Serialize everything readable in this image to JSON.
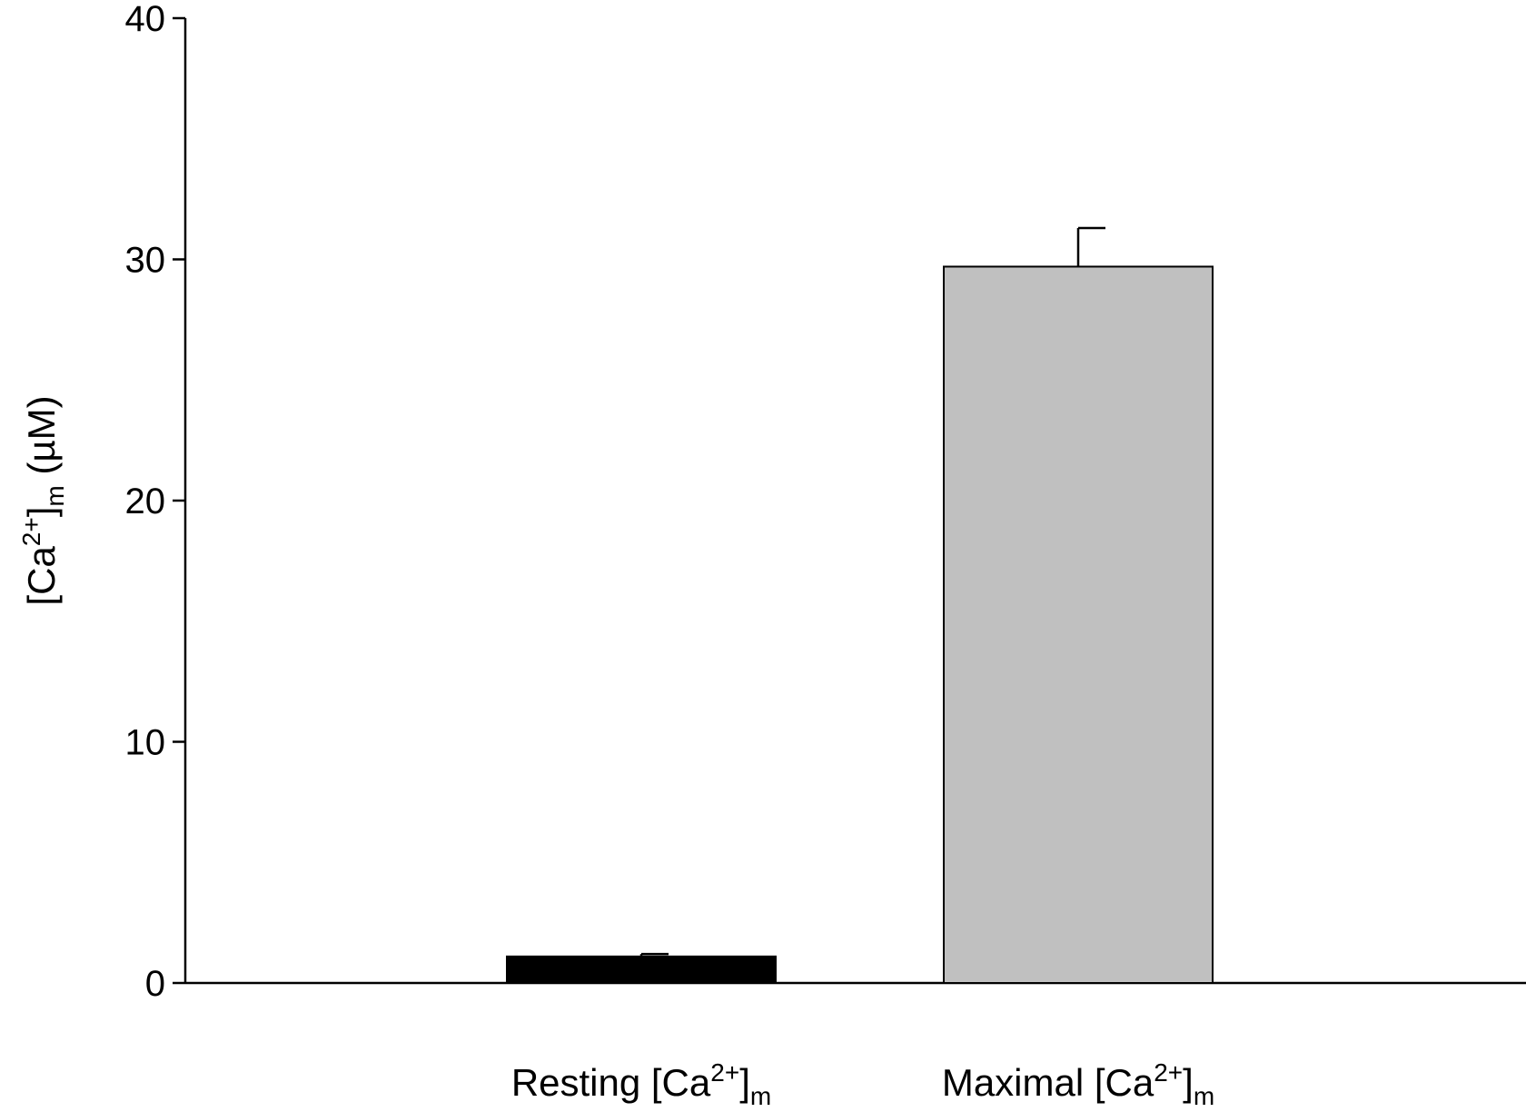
{
  "chart_data": {
    "type": "bar",
    "title": "",
    "xlabel": "",
    "ylabel": {
      "prefix": "[Ca",
      "sup": "2+",
      "close": "]",
      "sub": "m",
      "suffix": " (µM)"
    },
    "ylim": [
      0,
      40
    ],
    "yticks": [
      "0",
      "10",
      "20",
      "30",
      "40"
    ],
    "grid": false,
    "categories": [
      {
        "prefix": "Resting [Ca",
        "sup": "2+",
        "close": "]",
        "sub": "m"
      },
      {
        "prefix": "Maximal [Ca",
        "sup": "2+",
        "close": "]",
        "sub": "m"
      }
    ],
    "values": [
      1.1,
      29.7
    ],
    "errors": [
      0.1,
      1.6
    ],
    "colors": [
      "#000000",
      "#c0c0c0"
    ]
  }
}
